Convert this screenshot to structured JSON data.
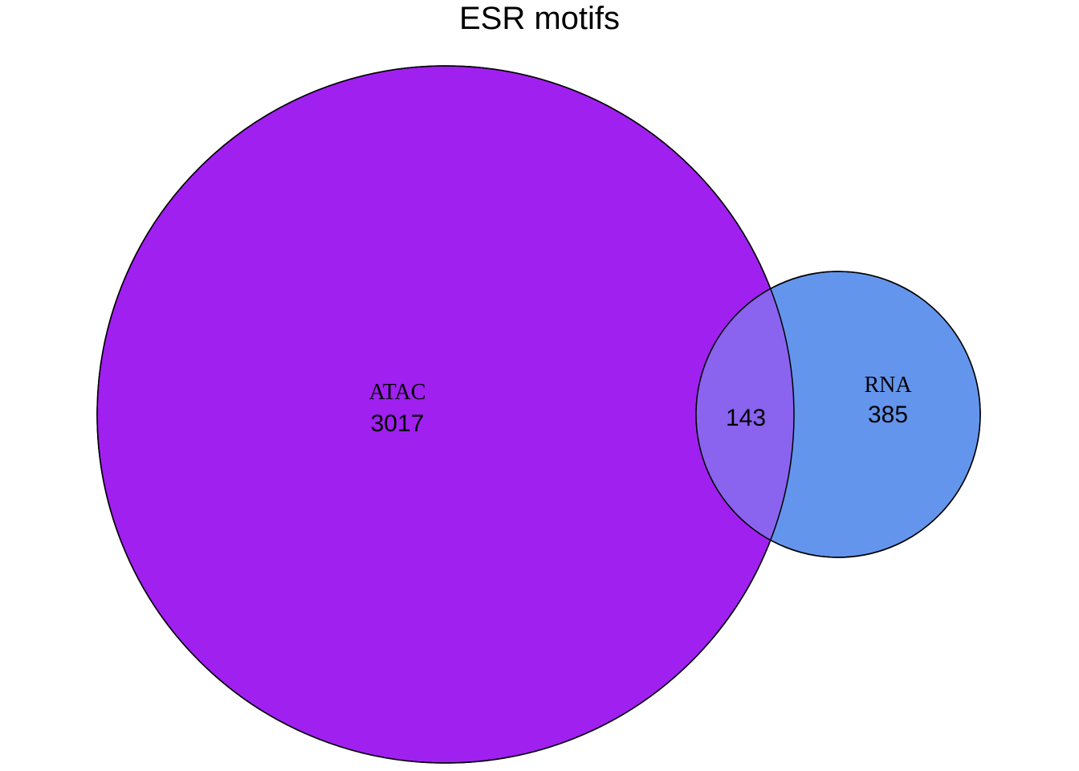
{
  "title": "ESR motifs",
  "sets": [
    {
      "name": "ATAC",
      "only_count": "3017",
      "color": "#A020F0"
    },
    {
      "name": "RNA",
      "only_count": "385",
      "color": "#6495ED"
    }
  ],
  "intersection": {
    "count": "143",
    "color": "#8A63EE"
  },
  "outline_color": "#000000"
}
